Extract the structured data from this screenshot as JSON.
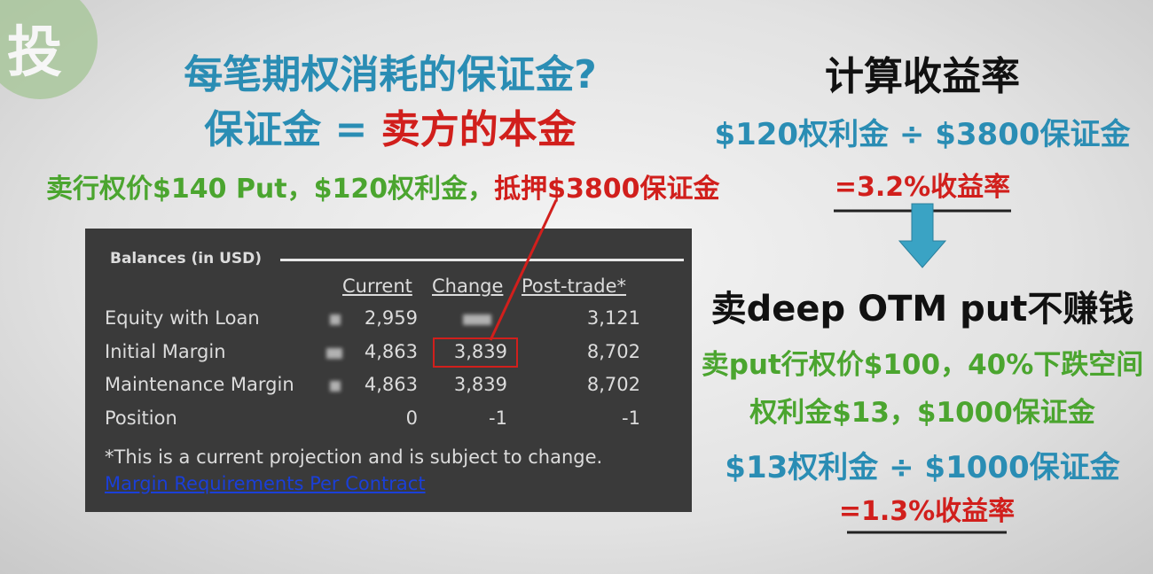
{
  "logo": "投",
  "left": {
    "title_line1": "每笔期权消耗的保证金?",
    "title_line2": {
      "prefix": "保证金 = ",
      "highlight": "卖方的本金"
    },
    "example": {
      "green": "卖行权价$140 Put，$120权利金，",
      "red": "抵押$3800保证金"
    }
  },
  "table": {
    "title": "Balances (in USD)",
    "headers": [
      "Current",
      "Change",
      "Post-trade*"
    ],
    "rows": [
      [
        "Equity with Loan",
        "2,959",
        null,
        "3,121"
      ],
      [
        "Initial Margin",
        "4,863",
        "3,839",
        "8,702"
      ],
      [
        "Maintenance Margin",
        "4,863",
        "3,839",
        "8,702"
      ],
      [
        "Position",
        "0",
        "-1",
        "-1"
      ]
    ],
    "note": "*This is a current projection and is subject to change.",
    "link": "Margin Requirements Per Contract"
  },
  "right": {
    "heading": "计算收益率",
    "formula1": "$120权利金 ÷ $3800保证金",
    "result1": "=3.2%收益率",
    "conclusion": "卖deep OTM put不赚钱",
    "line1": "卖put行权价$100，40%下跌空间",
    "line2": "权利金$13，$1000保证金",
    "formula2": "$13权利金 ÷ $1000保证金",
    "result2": "=1.3%收益率"
  }
}
